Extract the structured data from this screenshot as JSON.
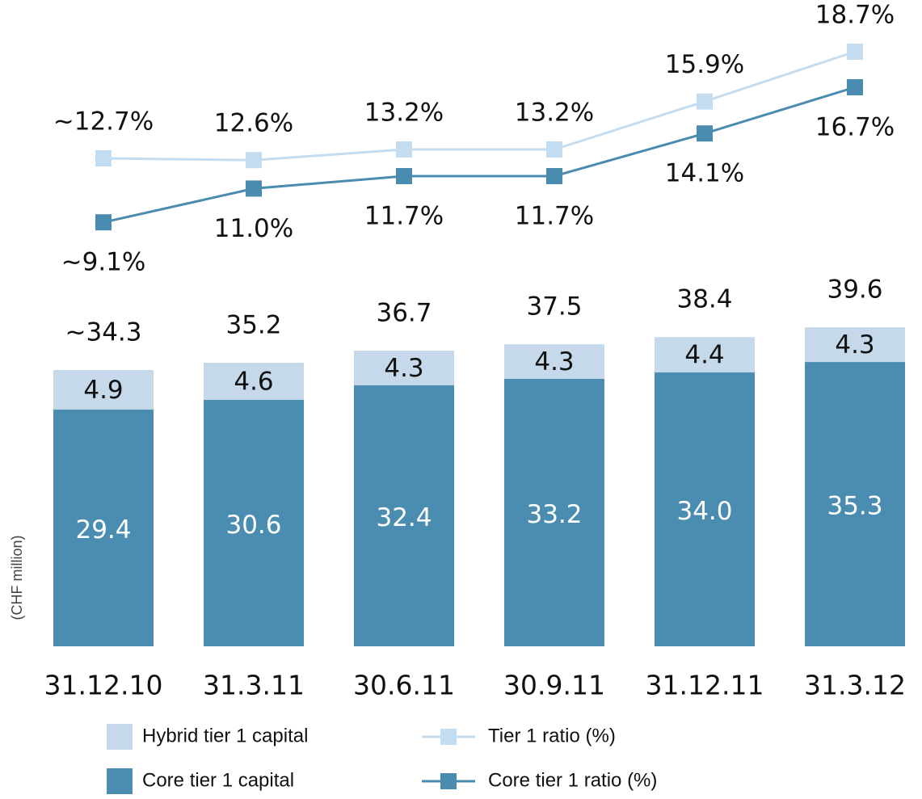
{
  "chart_data": {
    "type": "bar_line",
    "y_axis_label": "(CHF million)",
    "categories": [
      "31.12.10",
      "31.3.11",
      "30.6.11",
      "30.9.11",
      "31.12.11",
      "31.3.12"
    ],
    "bar_series": [
      {
        "name": "Core tier 1 capital",
        "color": "#4a8db1",
        "values": [
          29.4,
          30.6,
          32.4,
          33.2,
          34.0,
          35.3
        ],
        "value_labels": [
          "29.4",
          "30.6",
          "32.4",
          "33.2",
          "34.0",
          "35.3"
        ]
      },
      {
        "name": "Hybrid tier 1 capital",
        "color": "#c5d9ea",
        "values": [
          4.9,
          4.6,
          4.3,
          4.3,
          4.4,
          4.3
        ]
      }
    ],
    "totals": [
      34.3,
      35.2,
      36.7,
      37.5,
      38.4,
      39.6
    ],
    "total_labels": [
      "~34.3",
      "35.2",
      "36.7",
      "37.5",
      "38.4",
      "39.6"
    ],
    "line_series": [
      {
        "name": "Tier 1 ratio (%)",
        "color": "#c4dcef",
        "values": [
          12.7,
          12.6,
          13.2,
          13.2,
          15.9,
          18.7
        ],
        "value_labels": [
          "~12.7%",
          "12.6%",
          "13.2%",
          "13.2%",
          "15.9%",
          "18.7%"
        ]
      },
      {
        "name": "Core tier 1 ratio (%)",
        "color": "#4a8cb0",
        "values": [
          9.1,
          11.0,
          11.7,
          11.7,
          14.1,
          16.7
        ],
        "value_labels": [
          "~9.1%",
          "11.0%",
          "11.7%",
          "11.7%",
          "14.1%",
          "16.7%"
        ]
      }
    ]
  }
}
